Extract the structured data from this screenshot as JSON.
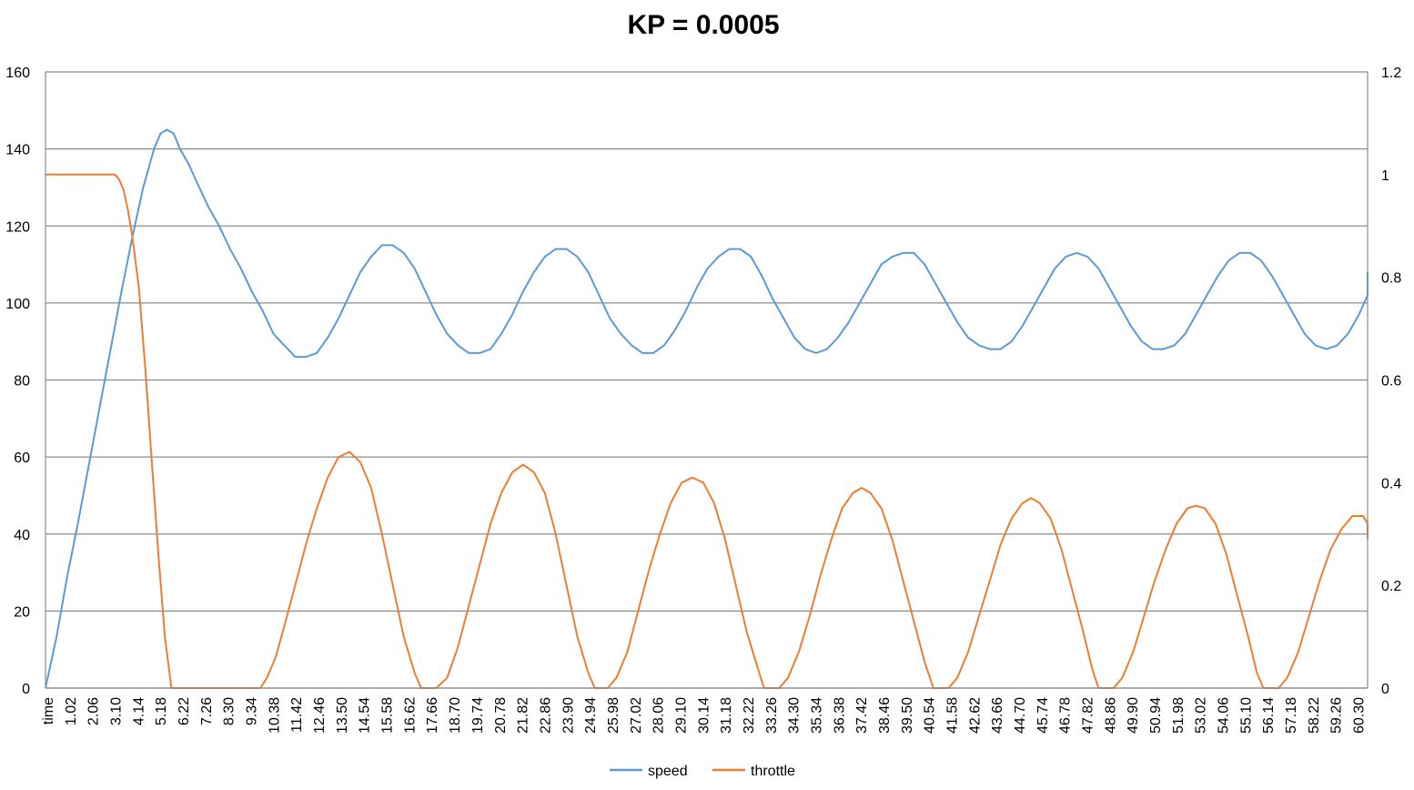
{
  "chart_data": {
    "type": "line",
    "title": "KP = 0.0005",
    "xlabel": "",
    "ylabel": "",
    "x_tick_labels": [
      "time",
      "1.02",
      "2.06",
      "3.10",
      "4.14",
      "5.18",
      "6.22",
      "7.26",
      "8.30",
      "9.34",
      "10.38",
      "11.42",
      "12.46",
      "13.50",
      "14.54",
      "15.58",
      "16.62",
      "17.66",
      "18.70",
      "19.74",
      "20.78",
      "21.82",
      "22.86",
      "23.90",
      "24.94",
      "25.98",
      "27.02",
      "28.06",
      "29.10",
      "30.14",
      "31.18",
      "32.22",
      "33.26",
      "34.30",
      "35.34",
      "36.38",
      "37.42",
      "38.46",
      "39.50",
      "40.54",
      "41.58",
      "42.62",
      "43.66",
      "44.70",
      "45.74",
      "46.78",
      "47.82",
      "48.86",
      "49.90",
      "50.94",
      "51.98",
      "53.02",
      "54.06",
      "55.10",
      "56.14",
      "57.18",
      "58.22",
      "59.26",
      "60.30"
    ],
    "x_range": [
      0,
      60.9
    ],
    "y_left": {
      "ylim": [
        0,
        160
      ],
      "ticks": [
        "0",
        "20",
        "40",
        "60",
        "80",
        "100",
        "120",
        "140",
        "160"
      ]
    },
    "y_right": {
      "ylim": [
        0,
        1.2
      ],
      "ticks": [
        "0",
        "0.2",
        "0.4",
        "0.6",
        "0.8",
        "1",
        "1.2"
      ]
    },
    "grid": "horizontal",
    "legend_position": "bottom",
    "series": [
      {
        "name": "speed",
        "axis": "left",
        "color": "#5B9BD5",
        "points": [
          [
            0,
            0
          ],
          [
            0.5,
            13
          ],
          [
            1.0,
            29
          ],
          [
            1.5,
            43
          ],
          [
            2.0,
            58
          ],
          [
            2.5,
            73
          ],
          [
            3.0,
            88
          ],
          [
            3.5,
            103
          ],
          [
            4.0,
            117
          ],
          [
            4.5,
            130
          ],
          [
            5.0,
            140
          ],
          [
            5.3,
            144
          ],
          [
            5.6,
            145
          ],
          [
            5.9,
            144
          ],
          [
            6.2,
            140
          ],
          [
            6.6,
            136
          ],
          [
            7.0,
            131
          ],
          [
            7.5,
            125
          ],
          [
            8.0,
            120
          ],
          [
            8.5,
            114
          ],
          [
            9.0,
            109
          ],
          [
            9.5,
            103
          ],
          [
            10.0,
            98
          ],
          [
            10.5,
            92
          ],
          [
            11.0,
            89
          ],
          [
            11.5,
            86
          ],
          [
            12.0,
            86
          ],
          [
            12.5,
            87
          ],
          [
            13.0,
            91
          ],
          [
            13.5,
            96
          ],
          [
            14.0,
            102
          ],
          [
            14.5,
            108
          ],
          [
            15.0,
            112
          ],
          [
            15.5,
            115
          ],
          [
            16.0,
            115
          ],
          [
            16.5,
            113
          ],
          [
            17.0,
            109
          ],
          [
            17.5,
            103
          ],
          [
            18.0,
            97
          ],
          [
            18.5,
            92
          ],
          [
            19.0,
            89
          ],
          [
            19.5,
            87
          ],
          [
            20.0,
            87
          ],
          [
            20.5,
            88
          ],
          [
            21.0,
            92
          ],
          [
            21.5,
            97
          ],
          [
            22.0,
            103
          ],
          [
            22.5,
            108
          ],
          [
            23.0,
            112
          ],
          [
            23.5,
            114
          ],
          [
            24.0,
            114
          ],
          [
            24.5,
            112
          ],
          [
            25.0,
            108
          ],
          [
            25.5,
            102
          ],
          [
            26.0,
            96
          ],
          [
            26.5,
            92
          ],
          [
            27.0,
            89
          ],
          [
            27.5,
            87
          ],
          [
            28.0,
            87
          ],
          [
            28.5,
            89
          ],
          [
            29.0,
            93
          ],
          [
            29.5,
            98
          ],
          [
            30.0,
            104
          ],
          [
            30.5,
            109
          ],
          [
            31.0,
            112
          ],
          [
            31.5,
            114
          ],
          [
            32.0,
            114
          ],
          [
            32.5,
            112
          ],
          [
            33.0,
            107
          ],
          [
            33.5,
            101
          ],
          [
            34.0,
            96
          ],
          [
            34.5,
            91
          ],
          [
            35.0,
            88
          ],
          [
            35.5,
            87
          ],
          [
            36.0,
            88
          ],
          [
            36.5,
            91
          ],
          [
            37.0,
            95
          ],
          [
            37.5,
            100
          ],
          [
            38.0,
            105
          ],
          [
            38.5,
            110
          ],
          [
            39.0,
            112
          ],
          [
            39.5,
            113
          ],
          [
            40.0,
            113
          ],
          [
            40.5,
            110
          ],
          [
            41.0,
            105
          ],
          [
            41.5,
            100
          ],
          [
            42.0,
            95
          ],
          [
            42.5,
            91
          ],
          [
            43.0,
            89
          ],
          [
            43.5,
            88
          ],
          [
            44.0,
            88
          ],
          [
            44.5,
            90
          ],
          [
            45.0,
            94
          ],
          [
            45.5,
            99
          ],
          [
            46.0,
            104
          ],
          [
            46.5,
            109
          ],
          [
            47.0,
            112
          ],
          [
            47.5,
            113
          ],
          [
            48.0,
            112
          ],
          [
            48.5,
            109
          ],
          [
            49.0,
            104
          ],
          [
            49.5,
            99
          ],
          [
            50.0,
            94
          ],
          [
            50.5,
            90
          ],
          [
            51.0,
            88
          ],
          [
            51.5,
            88
          ],
          [
            52.0,
            89
          ],
          [
            52.5,
            92
          ],
          [
            53.0,
            97
          ],
          [
            53.5,
            102
          ],
          [
            54.0,
            107
          ],
          [
            54.5,
            111
          ],
          [
            55.0,
            113
          ],
          [
            55.5,
            113
          ],
          [
            56.0,
            111
          ],
          [
            56.5,
            107
          ],
          [
            57.0,
            102
          ],
          [
            57.5,
            97
          ],
          [
            58.0,
            92
          ],
          [
            58.5,
            89
          ],
          [
            59.0,
            88
          ],
          [
            59.5,
            89
          ],
          [
            60.0,
            92
          ],
          [
            60.5,
            97
          ],
          [
            61.0,
            102
          ],
          [
            61.5,
            106
          ],
          [
            61.9,
            108
          ]
        ]
      },
      {
        "name": "throttle",
        "axis": "right",
        "color": "#ED7D31",
        "points": [
          [
            0,
            1.0
          ],
          [
            3.2,
            1.0
          ],
          [
            3.4,
            0.99
          ],
          [
            3.6,
            0.97
          ],
          [
            3.8,
            0.93
          ],
          [
            4.0,
            0.88
          ],
          [
            4.3,
            0.78
          ],
          [
            4.6,
            0.62
          ],
          [
            4.9,
            0.44
          ],
          [
            5.2,
            0.26
          ],
          [
            5.5,
            0.1
          ],
          [
            5.8,
            0.0
          ],
          [
            6.5,
            0.0
          ],
          [
            7.5,
            0.0
          ],
          [
            8.5,
            0.0
          ],
          [
            9.5,
            0.0
          ],
          [
            9.9,
            0.0
          ],
          [
            10.2,
            0.02
          ],
          [
            10.6,
            0.06
          ],
          [
            11.0,
            0.12
          ],
          [
            11.5,
            0.2
          ],
          [
            12.0,
            0.28
          ],
          [
            12.5,
            0.35
          ],
          [
            13.0,
            0.41
          ],
          [
            13.5,
            0.45
          ],
          [
            14.0,
            0.46
          ],
          [
            14.5,
            0.44
          ],
          [
            15.0,
            0.39
          ],
          [
            15.5,
            0.3
          ],
          [
            16.0,
            0.2
          ],
          [
            16.5,
            0.1
          ],
          [
            17.0,
            0.03
          ],
          [
            17.3,
            0.0
          ],
          [
            18.0,
            0.0
          ],
          [
            18.5,
            0.02
          ],
          [
            19.0,
            0.08
          ],
          [
            19.5,
            0.16
          ],
          [
            20.0,
            0.24
          ],
          [
            20.5,
            0.32
          ],
          [
            21.0,
            0.38
          ],
          [
            21.5,
            0.42
          ],
          [
            22.0,
            0.435
          ],
          [
            22.5,
            0.42
          ],
          [
            23.0,
            0.38
          ],
          [
            23.5,
            0.3
          ],
          [
            24.0,
            0.2
          ],
          [
            24.5,
            0.1
          ],
          [
            25.0,
            0.03
          ],
          [
            25.3,
            0.0
          ],
          [
            25.9,
            0.0
          ],
          [
            26.3,
            0.02
          ],
          [
            26.8,
            0.07
          ],
          [
            27.3,
            0.15
          ],
          [
            27.8,
            0.23
          ],
          [
            28.3,
            0.3
          ],
          [
            28.8,
            0.36
          ],
          [
            29.3,
            0.4
          ],
          [
            29.8,
            0.41
          ],
          [
            30.3,
            0.4
          ],
          [
            30.8,
            0.36
          ],
          [
            31.3,
            0.29
          ],
          [
            31.8,
            0.2
          ],
          [
            32.3,
            0.11
          ],
          [
            32.8,
            0.04
          ],
          [
            33.1,
            0.0
          ],
          [
            33.8,
            0.0
          ],
          [
            34.2,
            0.02
          ],
          [
            34.7,
            0.07
          ],
          [
            35.2,
            0.14
          ],
          [
            35.7,
            0.22
          ],
          [
            36.2,
            0.29
          ],
          [
            36.7,
            0.35
          ],
          [
            37.2,
            0.38
          ],
          [
            37.6,
            0.39
          ],
          [
            38.0,
            0.38
          ],
          [
            38.5,
            0.35
          ],
          [
            39.0,
            0.29
          ],
          [
            39.5,
            0.21
          ],
          [
            40.0,
            0.13
          ],
          [
            40.5,
            0.05
          ],
          [
            40.9,
            0.0
          ],
          [
            41.6,
            0.0
          ],
          [
            42.0,
            0.02
          ],
          [
            42.5,
            0.07
          ],
          [
            43.0,
            0.14
          ],
          [
            43.5,
            0.21
          ],
          [
            44.0,
            0.28
          ],
          [
            44.5,
            0.33
          ],
          [
            45.0,
            0.36
          ],
          [
            45.4,
            0.37
          ],
          [
            45.8,
            0.36
          ],
          [
            46.3,
            0.33
          ],
          [
            46.8,
            0.27
          ],
          [
            47.3,
            0.19
          ],
          [
            47.8,
            0.11
          ],
          [
            48.2,
            0.04
          ],
          [
            48.5,
            0.0
          ],
          [
            49.2,
            0.0
          ],
          [
            49.6,
            0.02
          ],
          [
            50.1,
            0.07
          ],
          [
            50.6,
            0.14
          ],
          [
            51.1,
            0.21
          ],
          [
            51.6,
            0.27
          ],
          [
            52.1,
            0.32
          ],
          [
            52.6,
            0.35
          ],
          [
            53.0,
            0.355
          ],
          [
            53.4,
            0.35
          ],
          [
            53.9,
            0.32
          ],
          [
            54.4,
            0.26
          ],
          [
            54.9,
            0.18
          ],
          [
            55.4,
            0.1
          ],
          [
            55.8,
            0.03
          ],
          [
            56.1,
            0.0
          ],
          [
            56.8,
            0.0
          ],
          [
            57.2,
            0.02
          ],
          [
            57.7,
            0.07
          ],
          [
            58.2,
            0.14
          ],
          [
            58.7,
            0.21
          ],
          [
            59.2,
            0.27
          ],
          [
            59.7,
            0.31
          ],
          [
            60.2,
            0.335
          ],
          [
            60.7,
            0.335
          ],
          [
            61.2,
            0.32
          ],
          [
            61.6,
            0.3
          ],
          [
            61.9,
            0.29
          ]
        ]
      }
    ]
  }
}
